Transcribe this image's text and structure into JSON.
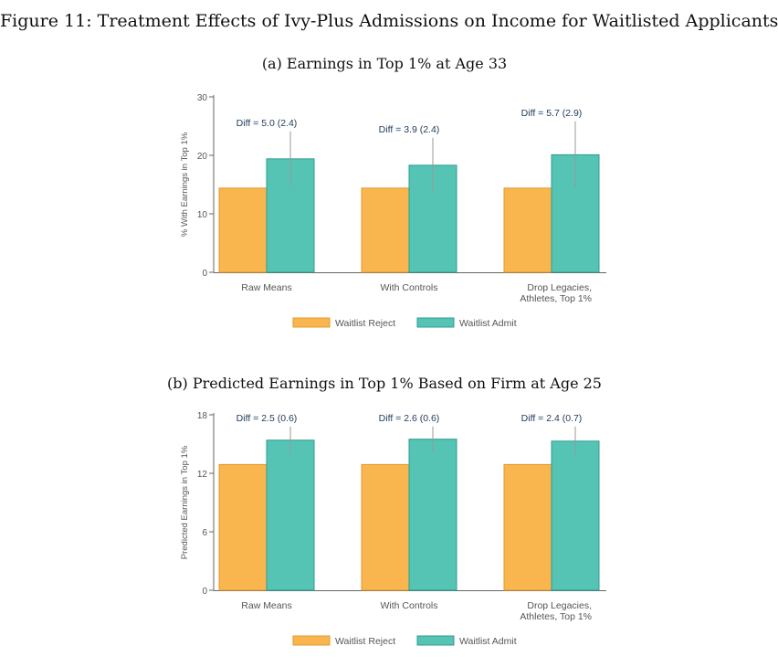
{
  "figure_title": "Figure 11: Treatment Effects of Ivy-Plus Admissions on Income for Waitlisted Applicants",
  "colors": {
    "reject": "#F9B64E",
    "reject_stroke": "#E39A2C",
    "admit": "#55C4B5",
    "admit_stroke": "#2E9C8E",
    "errorbar": "#999999",
    "axis": "#666666"
  },
  "chart_data": [
    {
      "panel_title": "(a) Earnings in Top 1% at Age 33",
      "type": "bar",
      "ylabel": "% With Earnings in Top 1%",
      "ylim": [
        0,
        30
      ],
      "yticks": [
        0,
        10,
        20,
        30
      ],
      "categories": [
        [
          "Raw Means"
        ],
        [
          "With Controls"
        ],
        [
          "Drop Legacies,",
          "Athletes, Top 1%"
        ]
      ],
      "series": [
        {
          "name": "Waitlist Reject",
          "values": [
            14.4,
            14.4,
            14.4
          ]
        },
        {
          "name": "Waitlist Admit",
          "values": [
            19.4,
            18.3,
            20.1
          ]
        }
      ],
      "admit_ci": [
        [
          14.7,
          24.1
        ],
        [
          13.6,
          23.0
        ],
        [
          14.4,
          25.8
        ]
      ],
      "diff_labels": [
        "Diff = 5.0 (2.4)",
        "Diff = 3.9 (2.4)",
        "Diff = 5.7 (2.9)"
      ],
      "legend_position": "bottom"
    },
    {
      "panel_title": "(b) Predicted Earnings in Top 1% Based on Firm at Age 25",
      "type": "bar",
      "ylabel": "Predicted Earnings in Top 1%",
      "ylim": [
        0,
        18
      ],
      "yticks": [
        0,
        6,
        12,
        18
      ],
      "categories": [
        [
          "Raw Means"
        ],
        [
          "With Controls"
        ],
        [
          "Drop Legacies,",
          "Athletes, Top 1%"
        ]
      ],
      "series": [
        {
          "name": "Waitlist Reject",
          "values": [
            12.9,
            12.9,
            12.9
          ]
        },
        {
          "name": "Waitlist Admit",
          "values": [
            15.4,
            15.5,
            15.3
          ]
        }
      ],
      "admit_ci": [
        [
          14.0,
          16.8
        ],
        [
          14.2,
          16.8
        ],
        [
          13.8,
          16.8
        ]
      ],
      "diff_labels": [
        "Diff = 2.5 (0.6)",
        "Diff = 2.6 (0.6)",
        "Diff = 2.4 (0.7)"
      ],
      "legend_position": "bottom"
    }
  ]
}
